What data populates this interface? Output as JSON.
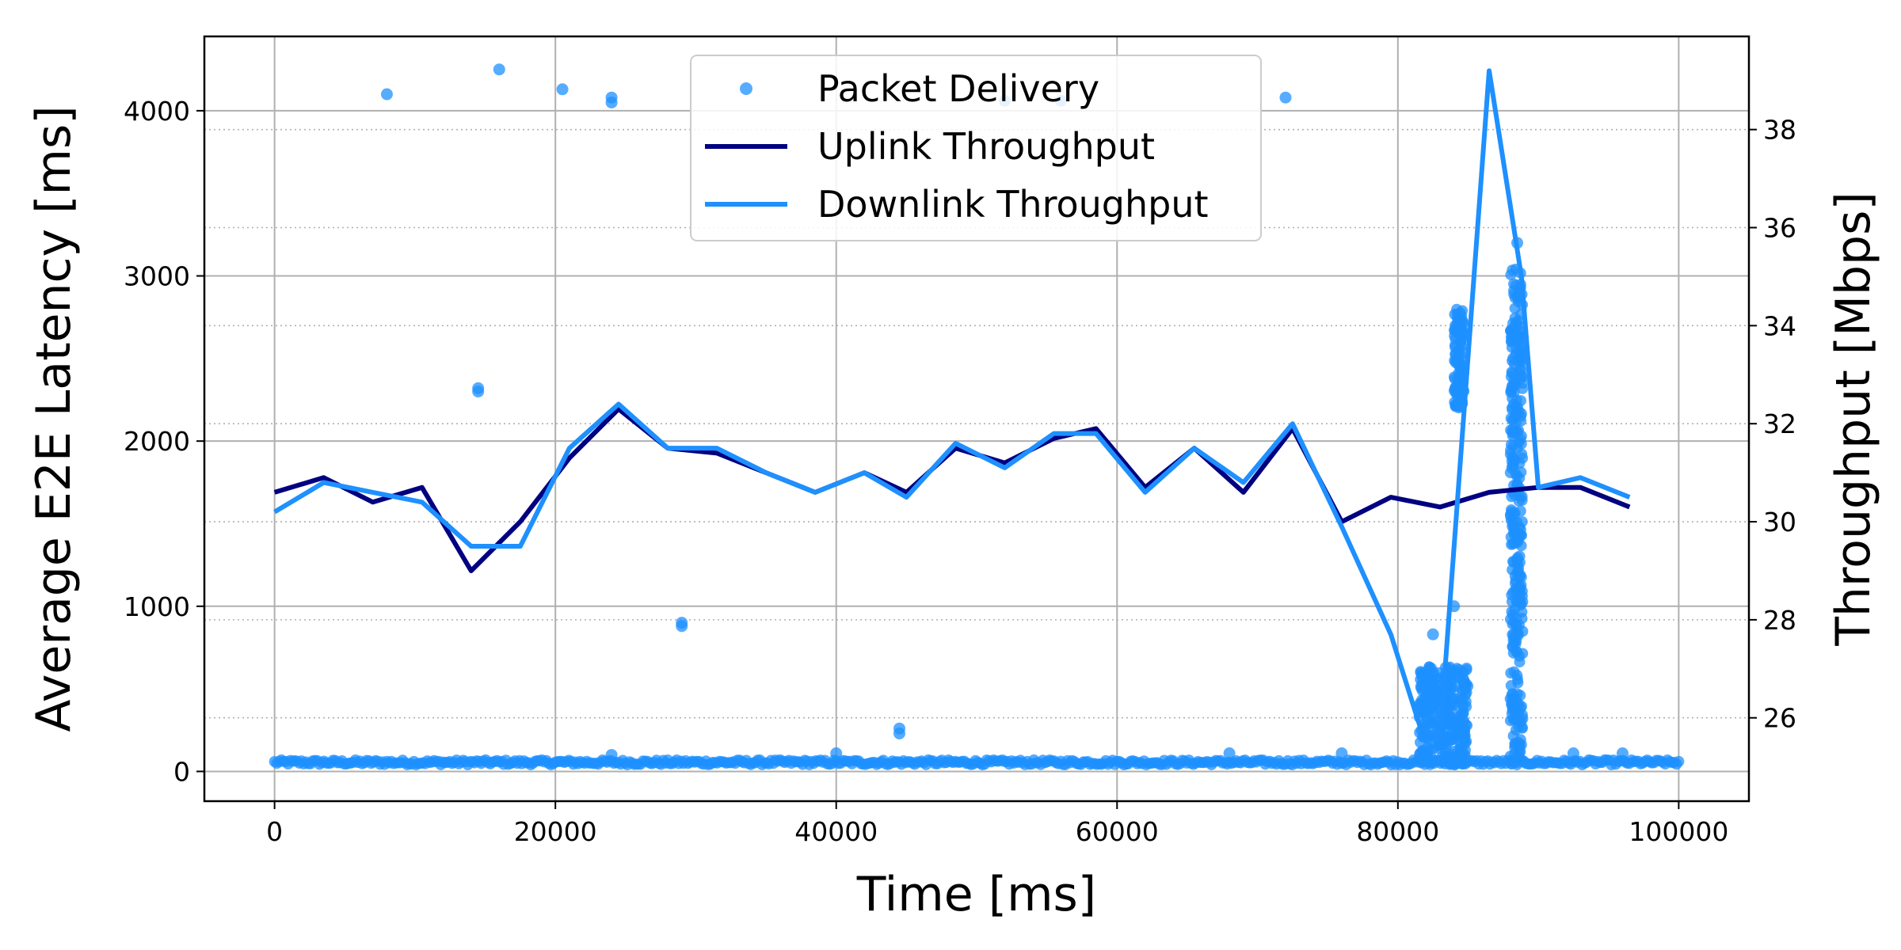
{
  "chart_data": {
    "type": "line",
    "xlabel": "Time [ms]",
    "ylabel_left": "Average E2E Latency [ms]",
    "ylabel_right": "Throughput [Mbps]",
    "xlim": [
      -5000,
      105000
    ],
    "ylim_left": [
      -180,
      4450
    ],
    "ylim_right": [
      24.3,
      39.9
    ],
    "x_ticks": [
      0,
      20000,
      40000,
      60000,
      80000,
      100000
    ],
    "y_left_ticks": [
      0,
      1000,
      2000,
      3000,
      4000
    ],
    "y_right_ticks": [
      26,
      28,
      30,
      32,
      34,
      36,
      38
    ],
    "grid": true,
    "legend": {
      "position": "top-center",
      "entries": [
        {
          "label": "Packet Delivery",
          "marker": "point",
          "color": "#1E90FF"
        },
        {
          "label": "Uplink Throughput",
          "marker": "line",
          "color": "#000080"
        },
        {
          "label": "Downlink Throughput",
          "marker": "line",
          "color": "#1E90FF"
        }
      ]
    },
    "series": [
      {
        "name": "Uplink Throughput",
        "axis": "right",
        "color": "#000080",
        "x": [
          0,
          3500,
          7000,
          10500,
          14000,
          17500,
          21000,
          24500,
          28000,
          31500,
          35000,
          38500,
          42000,
          45000,
          48500,
          52000,
          55500,
          58500,
          62000,
          65500,
          69000,
          72500,
          76000,
          79500,
          83000,
          86500,
          90000,
          93000,
          96500
        ],
        "y": [
          30.6,
          30.9,
          30.4,
          30.7,
          29.0,
          30.0,
          31.3,
          32.3,
          31.5,
          31.4,
          31.0,
          30.6,
          31.0,
          30.6,
          31.5,
          31.2,
          31.7,
          31.9,
          30.7,
          31.5,
          30.6,
          31.9,
          30.0,
          30.5,
          30.3,
          30.6,
          30.7,
          30.7,
          30.3
        ]
      },
      {
        "name": "Downlink Throughput",
        "axis": "right",
        "color": "#1E90FF",
        "x": [
          0,
          3500,
          7000,
          10500,
          14000,
          17500,
          21000,
          24500,
          28000,
          31500,
          35000,
          38500,
          42000,
          45000,
          48500,
          52000,
          55500,
          58500,
          62000,
          65500,
          69000,
          72500,
          76000,
          79500,
          81600,
          83000,
          86500,
          88800,
          90000,
          93000,
          96500
        ],
        "y": [
          30.2,
          30.8,
          30.6,
          30.4,
          29.5,
          29.5,
          31.5,
          32.4,
          31.5,
          31.5,
          31.0,
          30.6,
          31.0,
          30.5,
          31.6,
          31.1,
          31.8,
          31.8,
          30.6,
          31.5,
          30.8,
          32.0,
          29.9,
          27.7,
          25.8,
          25.6,
          39.2,
          35.0,
          30.7,
          30.9,
          30.5
        ]
      },
      {
        "name": "Packet Delivery",
        "axis": "left",
        "type": "scatter",
        "color": "#1E90FF",
        "baseline": {
          "x_start": 0,
          "x_end": 100000,
          "y_min": 40,
          "y_max": 70
        },
        "bursts": [
          {
            "x_start": 81500,
            "x_end": 85000,
            "y_min": 40,
            "y_max": 650
          },
          {
            "x_start": 84000,
            "x_end": 84700,
            "y_min": 2200,
            "y_max": 2800
          },
          {
            "x_start": 88000,
            "x_end": 88900,
            "y_min": 40,
            "y_max": 3050
          }
        ],
        "outliers": [
          [
            8000,
            4100
          ],
          [
            16000,
            4250
          ],
          [
            20500,
            4130
          ],
          [
            24000,
            4080
          ],
          [
            24000,
            4050
          ],
          [
            52000,
            4060
          ],
          [
            56000,
            4060
          ],
          [
            72000,
            4080
          ],
          [
            14500,
            2320
          ],
          [
            14500,
            2300
          ],
          [
            29000,
            900
          ],
          [
            29000,
            880
          ],
          [
            44500,
            260
          ],
          [
            44500,
            230
          ],
          [
            88500,
            3200
          ],
          [
            82500,
            830
          ],
          [
            84000,
            1000
          ],
          [
            68000,
            110
          ],
          [
            76000,
            110
          ],
          [
            92500,
            110
          ],
          [
            96000,
            110
          ],
          [
            40000,
            110
          ],
          [
            24000,
            100
          ]
        ]
      }
    ]
  }
}
